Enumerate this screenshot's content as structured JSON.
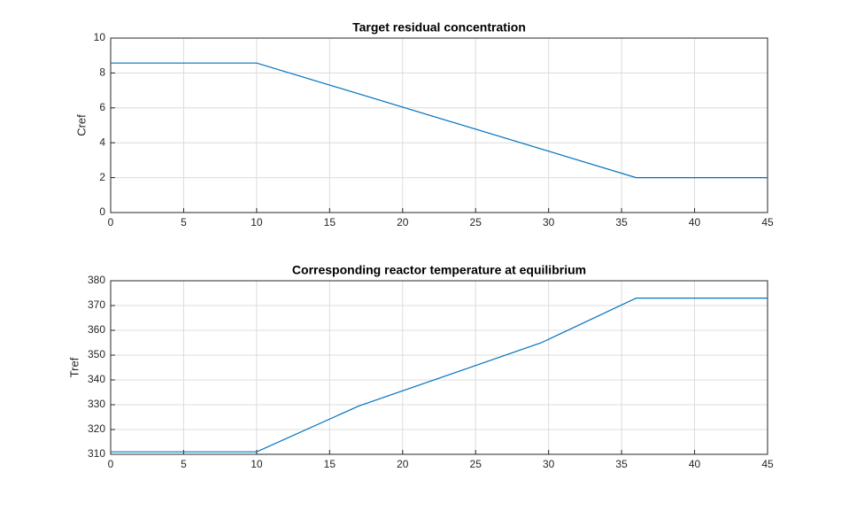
{
  "chart_data": [
    {
      "type": "line",
      "title": "Target residual concentration",
      "ylabel": "Cref",
      "x": [
        0,
        10,
        36,
        45
      ],
      "values": [
        8.57,
        8.57,
        2,
        2
      ],
      "color": "#0072bd",
      "xlim": [
        0,
        45
      ],
      "xticks": [
        0,
        5,
        10,
        15,
        20,
        25,
        30,
        35,
        40,
        45
      ],
      "ylim": [
        0,
        10
      ],
      "yticks": [
        0,
        2,
        4,
        6,
        8,
        10
      ],
      "grid": true
    },
    {
      "type": "line",
      "title": "Corresponding reactor temperature at equilibrium",
      "ylabel": "Tref",
      "x": [
        0,
        10,
        17,
        29.5,
        36,
        45
      ],
      "values": [
        311,
        311,
        329.5,
        355,
        373,
        373
      ],
      "color": "#0072bd",
      "xlim": [
        0,
        45
      ],
      "xticks": [
        0,
        5,
        10,
        15,
        20,
        25,
        30,
        35,
        40,
        45
      ],
      "ylim": [
        310,
        380
      ],
      "yticks": [
        310,
        320,
        330,
        340,
        350,
        360,
        370,
        380
      ],
      "grid": true
    }
  ]
}
